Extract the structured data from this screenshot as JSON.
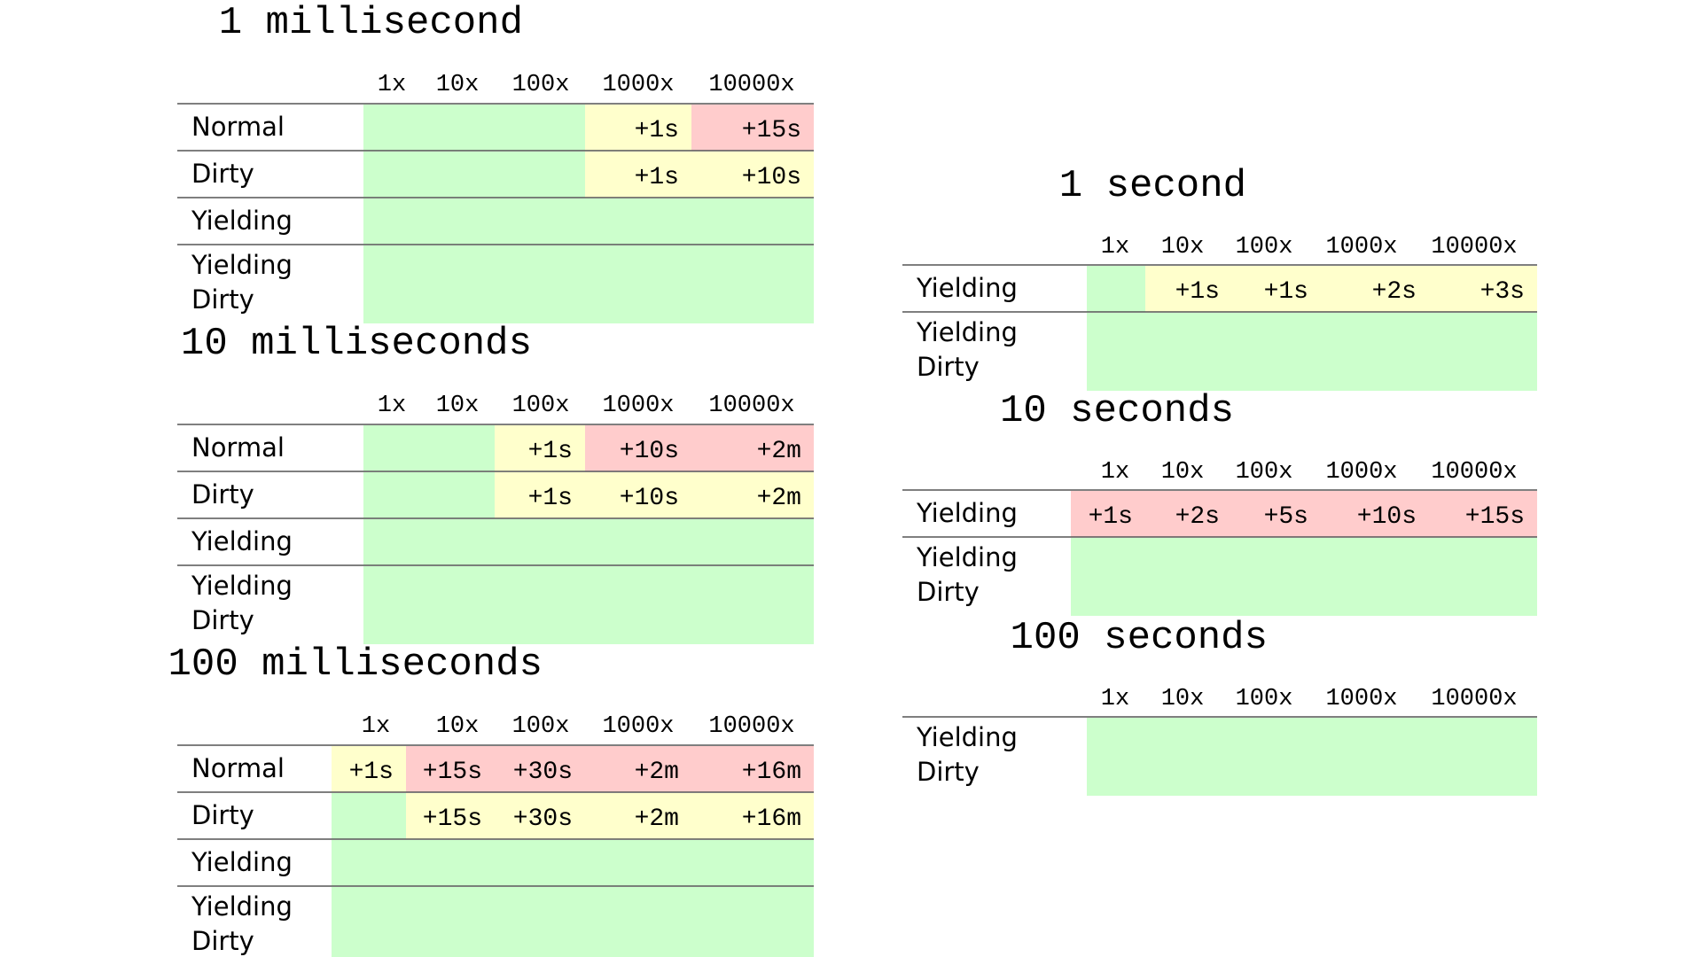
{
  "colors": {
    "green": "#ccffcc",
    "yellow": "#ffffcc",
    "red": "#ffcccc",
    "rule": "#555555"
  },
  "chart_data": [
    {
      "type": "table",
      "title": "1 millisecond",
      "columns": [
        "1x",
        "10x",
        "100x",
        "1000x",
        "10000x"
      ],
      "rows": [
        {
          "label": "Normal",
          "cells": [
            {
              "text": "",
              "status": "green"
            },
            {
              "text": "",
              "status": "green"
            },
            {
              "text": "",
              "status": "green"
            },
            {
              "text": "+1s",
              "status": "yellow"
            },
            {
              "text": "+15s",
              "status": "red"
            }
          ]
        },
        {
          "label": "Dirty",
          "cells": [
            {
              "text": "",
              "status": "green"
            },
            {
              "text": "",
              "status": "green"
            },
            {
              "text": "",
              "status": "green"
            },
            {
              "text": "+1s",
              "status": "yellow"
            },
            {
              "text": "+10s",
              "status": "yellow"
            }
          ]
        },
        {
          "label": "Yielding",
          "cells": [
            {
              "text": "",
              "status": "green"
            },
            {
              "text": "",
              "status": "green"
            },
            {
              "text": "",
              "status": "green"
            },
            {
              "text": "",
              "status": "green"
            },
            {
              "text": "",
              "status": "green"
            }
          ]
        },
        {
          "label": [
            "Yielding",
            "Dirty"
          ],
          "cells": [
            {
              "text": "",
              "status": "green"
            },
            {
              "text": "",
              "status": "green"
            },
            {
              "text": "",
              "status": "green"
            },
            {
              "text": "",
              "status": "green"
            },
            {
              "text": "",
              "status": "green"
            }
          ]
        }
      ]
    },
    {
      "type": "table",
      "title": "10 milliseconds",
      "columns": [
        "1x",
        "10x",
        "100x",
        "1000x",
        "10000x"
      ],
      "rows": [
        {
          "label": "Normal",
          "cells": [
            {
              "text": "",
              "status": "green"
            },
            {
              "text": "",
              "status": "green"
            },
            {
              "text": "+1s",
              "status": "yellow"
            },
            {
              "text": "+10s",
              "status": "red"
            },
            {
              "text": "+2m",
              "status": "red"
            }
          ]
        },
        {
          "label": "Dirty",
          "cells": [
            {
              "text": "",
              "status": "green"
            },
            {
              "text": "",
              "status": "green"
            },
            {
              "text": "+1s",
              "status": "yellow"
            },
            {
              "text": "+10s",
              "status": "yellow"
            },
            {
              "text": "+2m",
              "status": "yellow"
            }
          ]
        },
        {
          "label": "Yielding",
          "cells": [
            {
              "text": "",
              "status": "green"
            },
            {
              "text": "",
              "status": "green"
            },
            {
              "text": "",
              "status": "green"
            },
            {
              "text": "",
              "status": "green"
            },
            {
              "text": "",
              "status": "green"
            }
          ]
        },
        {
          "label": [
            "Yielding",
            "Dirty"
          ],
          "cells": [
            {
              "text": "",
              "status": "green"
            },
            {
              "text": "",
              "status": "green"
            },
            {
              "text": "",
              "status": "green"
            },
            {
              "text": "",
              "status": "green"
            },
            {
              "text": "",
              "status": "green"
            }
          ]
        }
      ]
    },
    {
      "type": "table",
      "title": "100 milliseconds",
      "columns": [
        "1x",
        "10x",
        "100x",
        "1000x",
        "10000x"
      ],
      "rows": [
        {
          "label": "Normal",
          "cells": [
            {
              "text": "+1s",
              "status": "yellow"
            },
            {
              "text": "+15s",
              "status": "red"
            },
            {
              "text": "+30s",
              "status": "red"
            },
            {
              "text": "+2m",
              "status": "red"
            },
            {
              "text": "+16m",
              "status": "red"
            }
          ]
        },
        {
          "label": "Dirty",
          "cells": [
            {
              "text": "",
              "status": "green"
            },
            {
              "text": "+15s",
              "status": "yellow"
            },
            {
              "text": "+30s",
              "status": "yellow"
            },
            {
              "text": "+2m",
              "status": "yellow"
            },
            {
              "text": "+16m",
              "status": "yellow"
            }
          ]
        },
        {
          "label": "Yielding",
          "cells": [
            {
              "text": "",
              "status": "green"
            },
            {
              "text": "",
              "status": "green"
            },
            {
              "text": "",
              "status": "green"
            },
            {
              "text": "",
              "status": "green"
            },
            {
              "text": "",
              "status": "green"
            }
          ]
        },
        {
          "label": [
            "Yielding",
            "Dirty"
          ],
          "cells": [
            {
              "text": "",
              "status": "green"
            },
            {
              "text": "",
              "status": "green"
            },
            {
              "text": "",
              "status": "green"
            },
            {
              "text": "",
              "status": "green"
            },
            {
              "text": "",
              "status": "green"
            }
          ]
        }
      ]
    },
    {
      "type": "table",
      "title": "1 second",
      "columns": [
        "1x",
        "10x",
        "100x",
        "1000x",
        "10000x"
      ],
      "rows": [
        {
          "label": "Yielding",
          "cells": [
            {
              "text": "",
              "status": "green"
            },
            {
              "text": "+1s",
              "status": "yellow"
            },
            {
              "text": "+1s",
              "status": "yellow"
            },
            {
              "text": "+2s",
              "status": "yellow"
            },
            {
              "text": "+3s",
              "status": "yellow"
            }
          ]
        },
        {
          "label": [
            "Yielding",
            "Dirty"
          ],
          "cells": [
            {
              "text": "",
              "status": "green"
            },
            {
              "text": "",
              "status": "green"
            },
            {
              "text": "",
              "status": "green"
            },
            {
              "text": "",
              "status": "green"
            },
            {
              "text": "",
              "status": "green"
            }
          ]
        }
      ]
    },
    {
      "type": "table",
      "title": "10 seconds",
      "columns": [
        "1x",
        "10x",
        "100x",
        "1000x",
        "10000x"
      ],
      "rows": [
        {
          "label": "Yielding",
          "cells": [
            {
              "text": "+1s",
              "status": "red"
            },
            {
              "text": "+2s",
              "status": "red"
            },
            {
              "text": "+5s",
              "status": "red"
            },
            {
              "text": "+10s",
              "status": "red"
            },
            {
              "text": "+15s",
              "status": "red"
            }
          ]
        },
        {
          "label": [
            "Yielding",
            "Dirty"
          ],
          "cells": [
            {
              "text": "",
              "status": "green"
            },
            {
              "text": "",
              "status": "green"
            },
            {
              "text": "",
              "status": "green"
            },
            {
              "text": "",
              "status": "green"
            },
            {
              "text": "",
              "status": "green"
            }
          ]
        }
      ]
    },
    {
      "type": "table",
      "title": "100 seconds",
      "columns": [
        "1x",
        "10x",
        "100x",
        "1000x",
        "10000x"
      ],
      "rows": [
        {
          "label": [
            "Yielding",
            "Dirty"
          ],
          "cells": [
            {
              "text": "",
              "status": "green"
            },
            {
              "text": "",
              "status": "green"
            },
            {
              "text": "",
              "status": "green"
            },
            {
              "text": "",
              "status": "green"
            },
            {
              "text": "",
              "status": "green"
            }
          ]
        }
      ]
    }
  ]
}
